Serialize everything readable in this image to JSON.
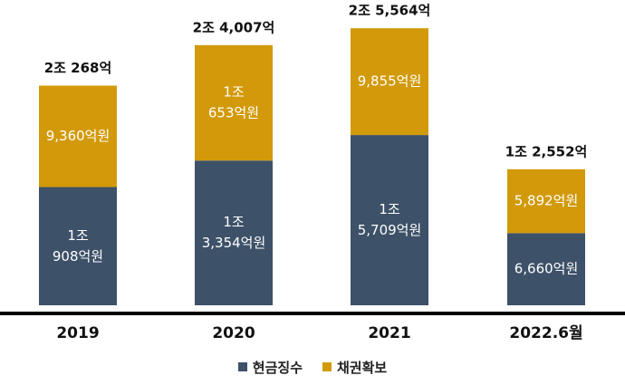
{
  "chart_data": {
    "type": "bar",
    "stacked": true,
    "categories": [
      "2019",
      "2020",
      "2021",
      "2022.6월"
    ],
    "unit": "억원",
    "series": [
      {
        "name": "현금징수",
        "color": "#3d5168",
        "values": [
          10908,
          13354,
          15709,
          6660
        ],
        "labels": [
          [
            "1조",
            "908억원"
          ],
          [
            "1조",
            "3,354억원"
          ],
          [
            "1조",
            "5,709억원"
          ],
          [
            "6,660억원"
          ]
        ]
      },
      {
        "name": "채권확보",
        "color": "#d29a0a",
        "values": [
          9360,
          10653,
          9855,
          5892
        ],
        "labels": [
          [
            "9,360억원"
          ],
          [
            "1조",
            "653억원"
          ],
          [
            "9,855억원"
          ],
          [
            "5,892억원"
          ]
        ]
      }
    ],
    "totals": [
      20268,
      24007,
      25564,
      12552
    ],
    "total_labels": [
      "2조 268억",
      "2조 4,007억",
      "2조 5,564억",
      "1조 2,552억"
    ],
    "ylim": [
      0,
      27000
    ],
    "grid": false,
    "legend_position": "bottom-center",
    "title": "",
    "xlabel": "",
    "ylabel": ""
  }
}
